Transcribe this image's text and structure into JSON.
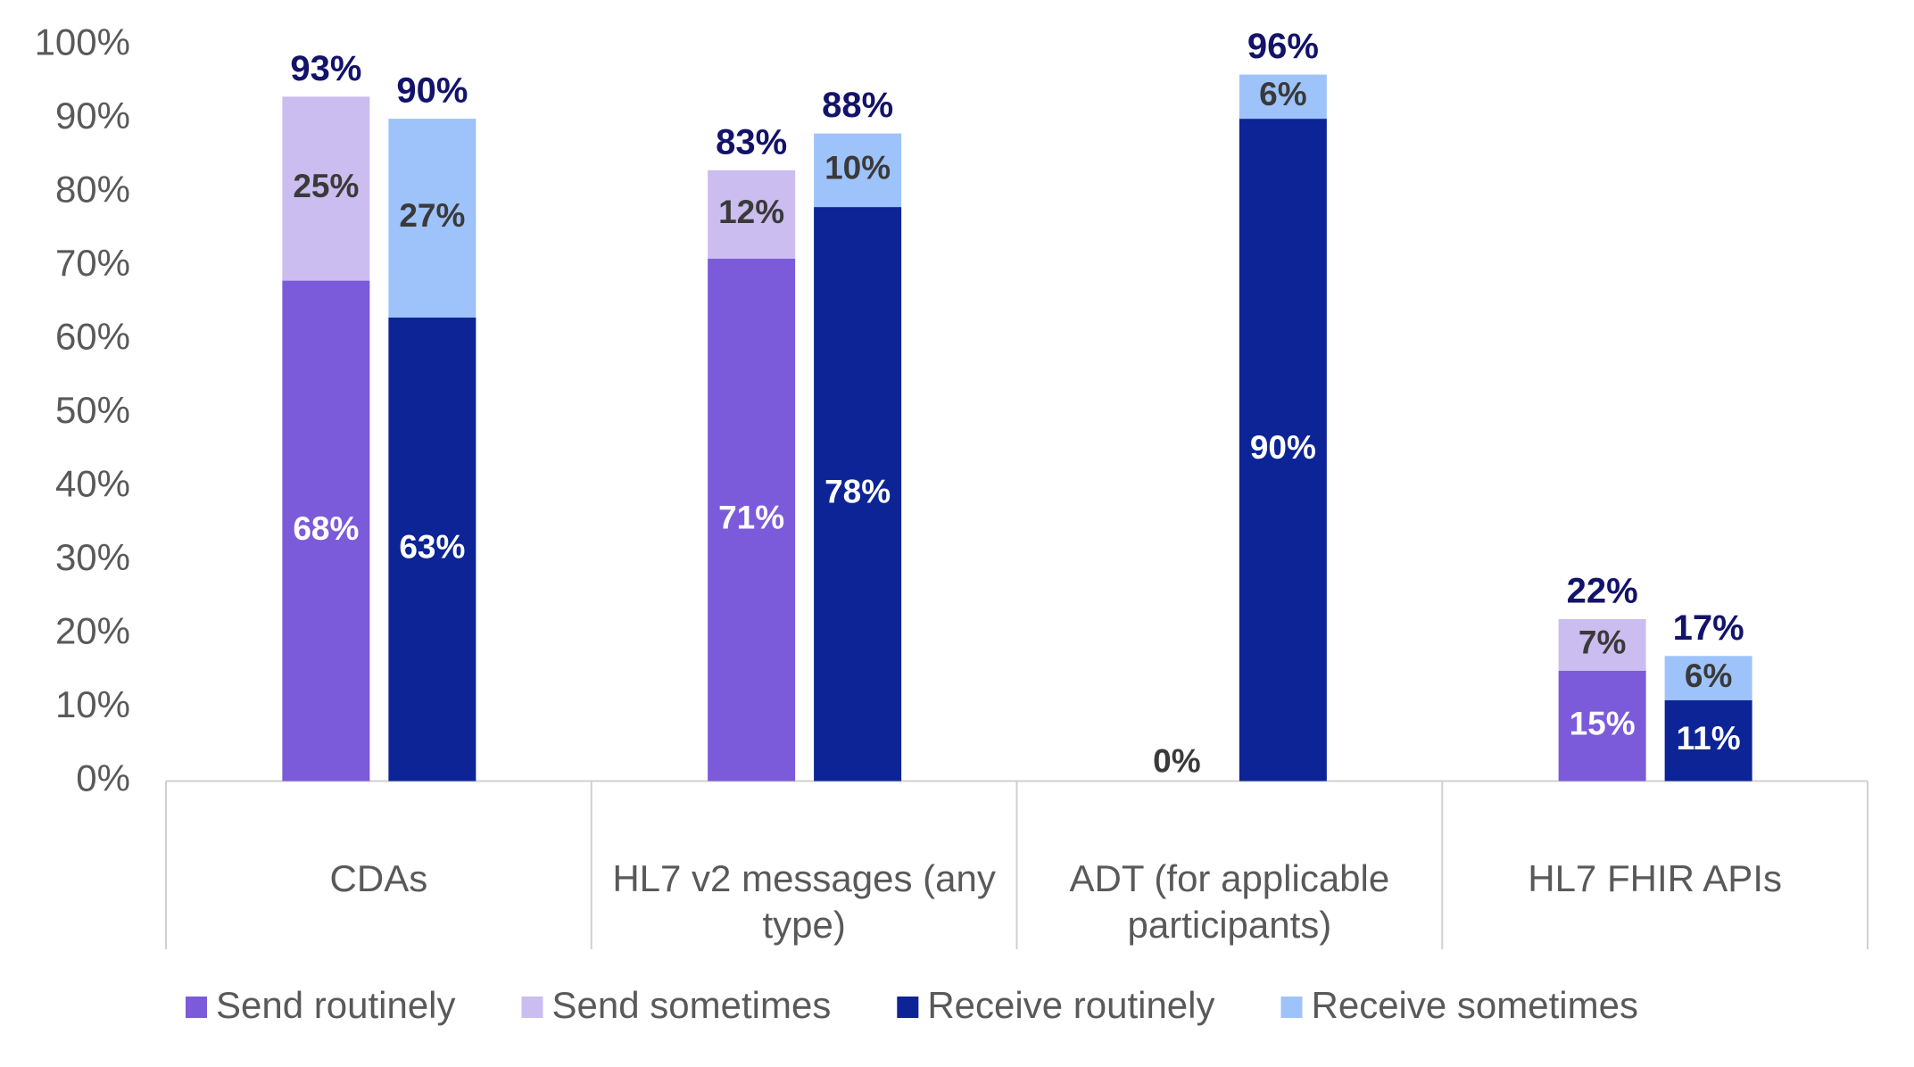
{
  "chart_data": {
    "type": "stacked-grouped-bar",
    "categories": [
      "CDAs",
      "HL7 v2 messages (any type)",
      "ADT (for applicable participants)",
      "HL7 FHIR APIs"
    ],
    "series": [
      {
        "name": "Send routinely",
        "color": "#7b5bd9",
        "label_color": "#ffffff",
        "stack": 0,
        "values": [
          68,
          71,
          0,
          15
        ]
      },
      {
        "name": "Send sometimes",
        "color": "#cbbdf0",
        "label_color": "#3a3a3a",
        "stack": 0,
        "values": [
          25,
          12,
          null,
          7
        ]
      },
      {
        "name": "Receive routinely",
        "color": "#0d2496",
        "label_color": "#ffffff",
        "stack": 1,
        "values": [
          63,
          78,
          90,
          11
        ]
      },
      {
        "name": "Receive sometimes",
        "color": "#9ec3fb",
        "label_color": "#3a3a3a",
        "stack": 1,
        "values": [
          27,
          10,
          6,
          6
        ]
      }
    ],
    "series_value_labels": [
      [
        "68%",
        "71%",
        "0%",
        "15%"
      ],
      [
        "25%",
        "12%",
        null,
        "7%"
      ],
      [
        "63%",
        "78%",
        "90%",
        "11%"
      ],
      [
        "27%",
        "10%",
        "6%",
        "6%"
      ]
    ],
    "stack_totals": [
      [
        93,
        83,
        null,
        22
      ],
      [
        90,
        88,
        96,
        17
      ]
    ],
    "stack_total_labels": [
      [
        "93%",
        "83%",
        null,
        "22%"
      ],
      [
        "90%",
        "88%",
        "96%",
        "17%"
      ]
    ],
    "total_color": "#13136b",
    "ylim": [
      0,
      100
    ],
    "yticks": [
      {
        "value": 0,
        "label": "0%"
      },
      {
        "value": 10,
        "label": "10%"
      },
      {
        "value": 20,
        "label": "20%"
      },
      {
        "value": 30,
        "label": "30%"
      },
      {
        "value": 40,
        "label": "40%"
      },
      {
        "value": 50,
        "label": "50%"
      },
      {
        "value": 60,
        "label": "60%"
      },
      {
        "value": 70,
        "label": "70%"
      },
      {
        "value": 80,
        "label": "80%"
      },
      {
        "value": 90,
        "label": "90%"
      },
      {
        "value": 100,
        "label": "100%"
      }
    ],
    "grid": false,
    "legend": "bottom"
  }
}
